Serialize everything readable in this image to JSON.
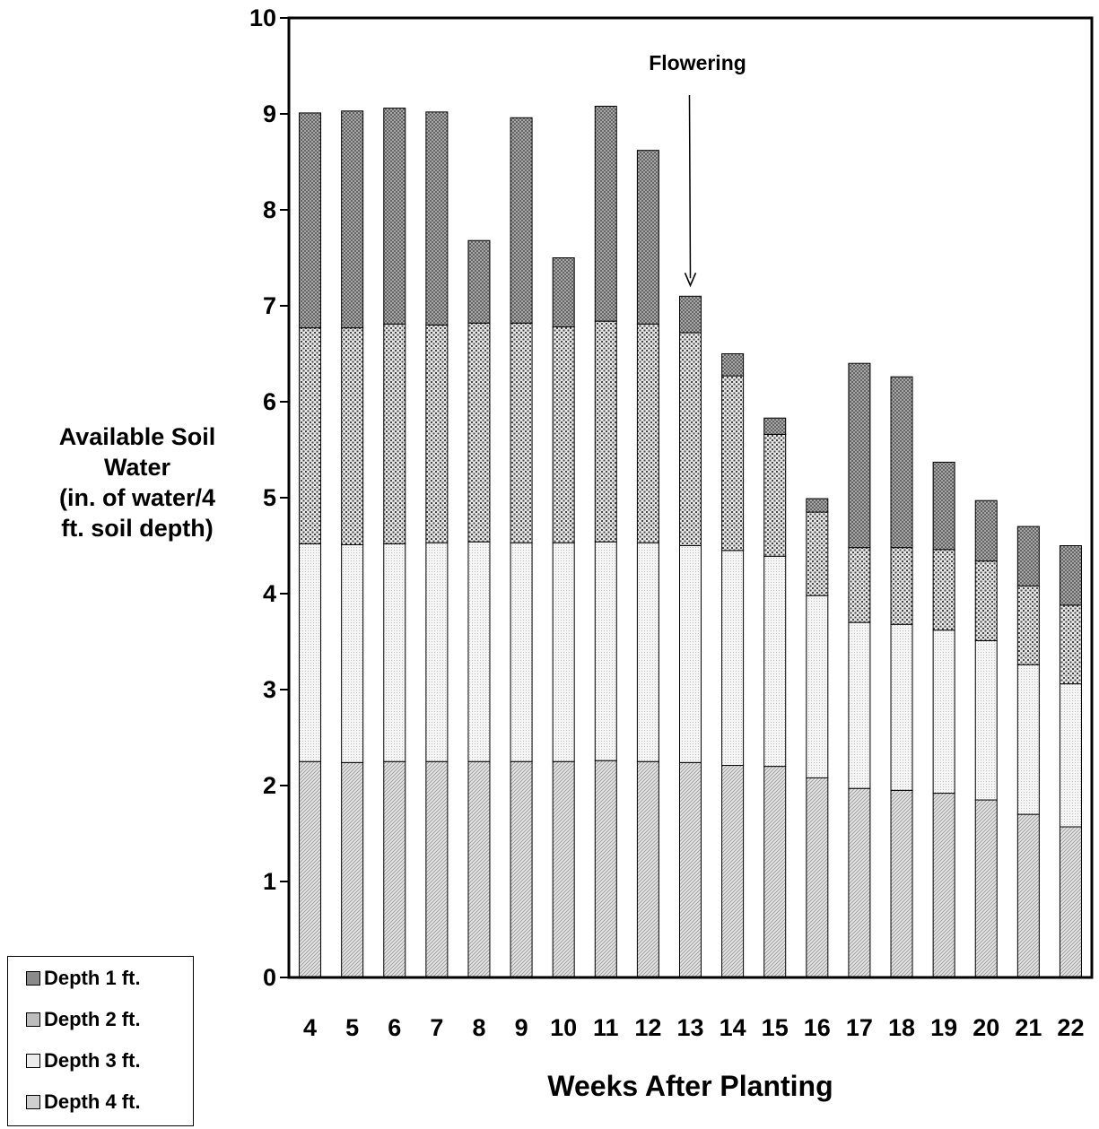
{
  "chart_data": {
    "type": "bar",
    "stacked": true,
    "title": "",
    "xlabel": "Weeks After Planting",
    "ylabel_lines": [
      "Available Soil",
      "Water",
      "(in. of water/4",
      "ft. soil depth)"
    ],
    "ylim": [
      0,
      10
    ],
    "yticks": [
      0,
      1,
      2,
      3,
      4,
      5,
      6,
      7,
      8,
      9,
      10
    ],
    "categories": [
      "4",
      "5",
      "6",
      "7",
      "8",
      "9",
      "10",
      "11",
      "12",
      "13",
      "14",
      "15",
      "16",
      "17",
      "18",
      "19",
      "20",
      "21",
      "22"
    ],
    "series": [
      {
        "name": "Depth 4 ft.",
        "color": "#cfcfcf",
        "values": [
          2.25,
          2.24,
          2.25,
          2.25,
          2.25,
          2.25,
          2.25,
          2.26,
          2.25,
          2.24,
          2.21,
          2.2,
          2.08,
          1.97,
          1.95,
          1.92,
          1.85,
          1.7,
          1.57
        ]
      },
      {
        "name": "Depth 3 ft.",
        "color": "#ececec",
        "values": [
          2.27,
          2.27,
          2.27,
          2.28,
          2.29,
          2.28,
          2.28,
          2.28,
          2.28,
          2.26,
          2.24,
          2.19,
          1.9,
          1.73,
          1.73,
          1.7,
          1.66,
          1.56,
          1.49
        ]
      },
      {
        "name": "Depth 2 ft.",
        "color": "#bdbdbd",
        "values": [
          2.25,
          2.26,
          2.29,
          2.27,
          2.28,
          2.29,
          2.25,
          2.3,
          2.28,
          2.22,
          1.82,
          1.27,
          0.87,
          0.78,
          0.8,
          0.84,
          0.83,
          0.82,
          0.82
        ]
      },
      {
        "name": "Depth 1 ft.",
        "color": "#8a8a8a",
        "values": [
          2.24,
          2.26,
          2.25,
          2.22,
          0.86,
          2.14,
          0.72,
          2.24,
          1.81,
          0.38,
          0.23,
          0.17,
          0.14,
          1.92,
          1.78,
          0.91,
          0.63,
          0.62,
          0.62
        ]
      }
    ],
    "legend_order": [
      "Depth 1 ft.",
      "Depth 2 ft.",
      "Depth 3 ft.",
      "Depth 4 ft."
    ],
    "legend_position": "bottom-left",
    "annotation": {
      "text": "Flowering",
      "category": "13"
    },
    "grid": false
  }
}
